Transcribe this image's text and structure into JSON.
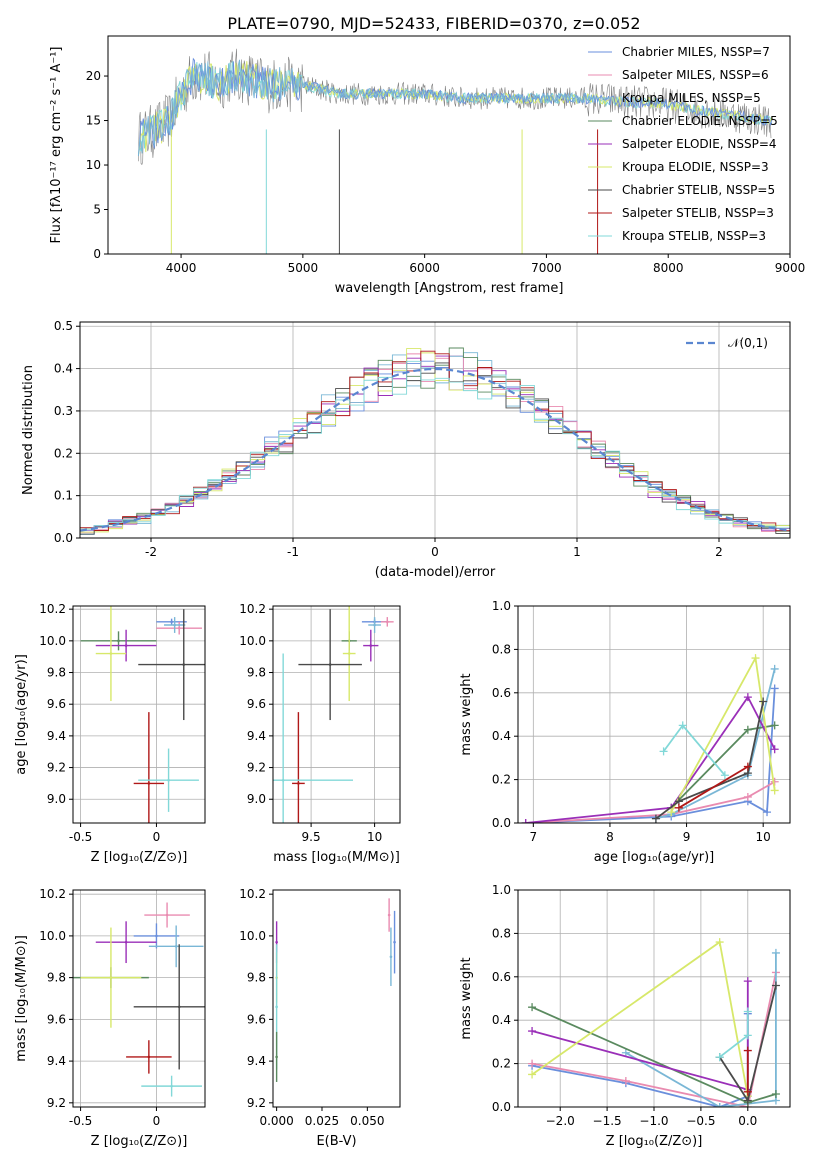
{
  "figure_title": "PLATE=0790, MJD=52433, FIBERID=0370, z=0.052",
  "colors": [
    "#6a8fdc",
    "#e98bb0",
    "#7ab7d6",
    "#5a8a5f",
    "#9a2fb8",
    "#d7e86a",
    "#4a4a4a",
    "#b01818",
    "#82d8d8"
  ],
  "chart_data": [
    {
      "type": "line",
      "title": "PLATE=0790, MJD=52433, FIBERID=0370, z=0.052",
      "xlabel": "wavelength [Angstrom, rest frame]",
      "ylabel": "Flux [fλ10⁻¹⁷ erg cm⁻² s⁻¹ A⁻¹]",
      "xlim": [
        3400,
        9000
      ],
      "ylim": [
        0,
        24.5
      ],
      "xticks": [
        4000,
        5000,
        6000,
        7000,
        8000,
        9000
      ],
      "yticks": [
        0,
        5,
        10,
        15,
        20
      ],
      "grid": false,
      "legend": "top-right",
      "legend_entries": [
        "Chabrier MILES, N_SSP=7",
        "Salpeter MILES, N_SSP=6",
        "Kroupa MILES, N_SSP=5",
        "Chabrier ELODIE, N_SSP=5",
        "Salpeter ELODIE, N_SSP=4",
        "Kroupa ELODIE, N_SSP=3",
        "Chabrier STELIB, N_SSP=5",
        "Salpeter STELIB, N_SSP=3",
        "Kroupa STELIB, N_SSP=3"
      ],
      "data_envelope": {
        "x": [
          3650,
          3800,
          3900,
          4000,
          4100,
          4200,
          4300,
          4400,
          4500,
          4700,
          5000,
          5300,
          5600,
          6000,
          6300,
          6600,
          6900,
          7100,
          7300,
          7500,
          7700,
          7900,
          8100,
          8300,
          8600,
          8800
        ],
        "y": [
          13,
          14,
          15,
          18,
          20,
          20,
          19,
          20,
          20,
          19,
          19,
          18,
          18,
          18,
          17.5,
          17.5,
          17.5,
          17.5,
          17.5,
          17.3,
          17,
          17,
          16.5,
          16,
          15.5,
          15
        ]
      }
    },
    {
      "type": "line",
      "xlabel": "(data-model)/error",
      "ylabel": "Normed distribution",
      "xlim": [
        -2.5,
        2.5
      ],
      "ylim": [
        0,
        0.51
      ],
      "xticks": [
        -2,
        -1,
        0,
        1,
        2
      ],
      "yticks": [
        0.0,
        0.1,
        0.2,
        0.3,
        0.4,
        0.5
      ],
      "grid": true,
      "legend": "top-right",
      "legend_entries": [
        "𝒩(0,1)"
      ],
      "curve": "normal(0,1)",
      "histogram_series": 9
    },
    {
      "type": "scatter",
      "xlabel": "Z [log₁₀(Z/Z⊙)]",
      "ylabel": "age  [log₁₀(age/yr)]",
      "xlim": [
        -0.55,
        0.32
      ],
      "ylim": [
        8.85,
        10.22
      ],
      "xticks": [
        -0.5,
        0.0
      ],
      "yticks": [
        9.0,
        9.2,
        9.4,
        9.6,
        9.8,
        10.0,
        10.2
      ],
      "grid": true,
      "points": [
        {
          "x": 0.1,
          "y": 10.12,
          "ex": 0.1,
          "ey": 0.02,
          "c": 0
        },
        {
          "x": 0.15,
          "y": 10.08,
          "ex": 0.15,
          "ey": 0.04,
          "c": 1
        },
        {
          "x": 0.12,
          "y": 10.1,
          "ex": 0.07,
          "ey": 0.05,
          "c": 2
        },
        {
          "x": -0.25,
          "y": 10.0,
          "ex": 0.25,
          "ey": 0.06,
          "c": 3
        },
        {
          "x": -0.2,
          "y": 9.97,
          "ex": 0.2,
          "ey": 0.1,
          "c": 4
        },
        {
          "x": -0.3,
          "y": 9.92,
          "ex": 0.1,
          "ey": 0.3,
          "c": 5
        },
        {
          "x": 0.18,
          "y": 9.85,
          "ex": 0.3,
          "ey": 0.35,
          "c": 6
        },
        {
          "x": -0.05,
          "y": 9.1,
          "ex": 0.1,
          "ey": 0.45,
          "c": 7
        },
        {
          "x": 0.08,
          "y": 9.12,
          "ex": 0.2,
          "ey": 0.2,
          "c": 8
        }
      ]
    },
    {
      "type": "scatter",
      "xlabel": "mass [log₁₀(M/M⊙)]",
      "ylabel": "",
      "xlim": [
        9.2,
        10.2
      ],
      "ylim": [
        8.85,
        10.22
      ],
      "xticks": [
        9.5,
        10.0
      ],
      "yticks": [
        9.0,
        9.2,
        9.4,
        9.6,
        9.8,
        10.0,
        10.2
      ],
      "grid": true,
      "points": [
        {
          "x": 10.0,
          "y": 10.12,
          "ex": 0.1,
          "ey": 0.02,
          "c": 0
        },
        {
          "x": 10.1,
          "y": 10.12,
          "ex": 0.05,
          "ey": 0.03,
          "c": 1
        },
        {
          "x": 10.0,
          "y": 10.1,
          "ex": 0.05,
          "ey": 0.05,
          "c": 2
        },
        {
          "x": 9.8,
          "y": 10.0,
          "ex": 0.06,
          "ey": 0.06,
          "c": 3
        },
        {
          "x": 9.97,
          "y": 9.97,
          "ex": 0.06,
          "ey": 0.1,
          "c": 4
        },
        {
          "x": 9.8,
          "y": 9.92,
          "ex": 0.05,
          "ey": 0.3,
          "c": 5
        },
        {
          "x": 9.65,
          "y": 9.85,
          "ex": 0.25,
          "ey": 0.35,
          "c": 6
        },
        {
          "x": 9.4,
          "y": 9.1,
          "ex": 0.05,
          "ey": 0.45,
          "c": 7
        },
        {
          "x": 9.28,
          "y": 9.12,
          "ex": 0.55,
          "ey": 0.8,
          "c": 8
        }
      ]
    },
    {
      "type": "line",
      "xlabel": "age  [log₁₀(age/yr)]",
      "ylabel": "mass weight",
      "xlim": [
        6.8,
        10.35
      ],
      "ylim": [
        0,
        1.0
      ],
      "xticks": [
        7,
        8,
        9,
        10
      ],
      "yticks": [
        0.0,
        0.2,
        0.4,
        0.6,
        0.8,
        1.0
      ],
      "grid": true,
      "series": [
        {
          "c": 0,
          "x": [
            6.9,
            8.8,
            9.8,
            10.05,
            10.15
          ],
          "y": [
            0.0,
            0.03,
            0.1,
            0.05,
            0.62
          ]
        },
        {
          "c": 1,
          "x": [
            6.9,
            8.8,
            9.8,
            10.15
          ],
          "y": [
            0.0,
            0.04,
            0.12,
            0.19
          ]
        },
        {
          "c": 2,
          "x": [
            8.6,
            8.8,
            9.8,
            10.15
          ],
          "y": [
            0.02,
            0.04,
            0.22,
            0.71
          ]
        },
        {
          "c": 3,
          "x": [
            8.8,
            9.8,
            10.15
          ],
          "y": [
            0.07,
            0.43,
            0.45
          ]
        },
        {
          "c": 4,
          "x": [
            6.9,
            8.8,
            9.8,
            10.15
          ],
          "y": [
            0.0,
            0.07,
            0.58,
            0.34
          ]
        },
        {
          "c": 5,
          "x": [
            8.8,
            9.9,
            10.15
          ],
          "y": [
            0.05,
            0.76,
            0.15
          ]
        },
        {
          "c": 6,
          "x": [
            8.6,
            8.9,
            9.8,
            10.0
          ],
          "y": [
            0.02,
            0.1,
            0.23,
            0.56
          ]
        },
        {
          "c": 7,
          "x": [
            8.9,
            9.8
          ],
          "y": [
            0.07,
            0.26
          ]
        },
        {
          "c": 8,
          "x": [
            8.7,
            8.95,
            9.5
          ],
          "y": [
            0.33,
            0.45,
            0.22
          ]
        }
      ]
    },
    {
      "type": "scatter",
      "xlabel": "Z [log₁₀(Z/Z⊙)]",
      "ylabel": "mass [log₁₀(M/M⊙)]",
      "xlim": [
        -0.55,
        0.32
      ],
      "ylim": [
        9.18,
        10.22
      ],
      "xticks": [
        -0.5,
        0.0
      ],
      "yticks": [
        9.2,
        9.4,
        9.6,
        9.8,
        10.0,
        10.2
      ],
      "grid": true,
      "points": [
        {
          "x": 0.0,
          "y": 10.0,
          "ex": 0.15,
          "ey": 0.06,
          "c": 0
        },
        {
          "x": 0.07,
          "y": 10.1,
          "ex": 0.15,
          "ey": 0.06,
          "c": 1
        },
        {
          "x": 0.13,
          "y": 9.95,
          "ex": 0.18,
          "ey": 0.1,
          "c": 2
        },
        {
          "x": -0.3,
          "y": 9.8,
          "ex": 0.25,
          "ey": 0.05,
          "c": 3
        },
        {
          "x": -0.2,
          "y": 9.97,
          "ex": 0.2,
          "ey": 0.1,
          "c": 4
        },
        {
          "x": -0.3,
          "y": 9.8,
          "ex": 0.2,
          "ey": 0.24,
          "c": 5
        },
        {
          "x": 0.15,
          "y": 9.66,
          "ex": 0.3,
          "ey": 0.3,
          "c": 6
        },
        {
          "x": -0.05,
          "y": 9.42,
          "ex": 0.15,
          "ey": 0.08,
          "c": 7
        },
        {
          "x": 0.1,
          "y": 9.28,
          "ex": 0.2,
          "ey": 0.05,
          "c": 8
        }
      ]
    },
    {
      "type": "scatter",
      "xlabel": "E(B-V)",
      "ylabel": "",
      "xlim": [
        -0.002,
        0.068
      ],
      "ylim": [
        9.18,
        10.22
      ],
      "xticks": [
        0.0,
        0.025,
        0.05
      ],
      "yticks": [
        9.2,
        9.4,
        9.6,
        9.8,
        10.0,
        10.2
      ],
      "tick_labels_x": [
        "0.000",
        "0.025",
        "0.050"
      ],
      "grid": false,
      "points": [
        {
          "x": 0.062,
          "y": 10.1,
          "ey": 0.08,
          "c": 1
        },
        {
          "x": 0.063,
          "y": 9.9,
          "ey": 0.14,
          "c": 2
        },
        {
          "x": 0.065,
          "y": 9.97,
          "ey": 0.15,
          "c": 0
        },
        {
          "x": 0.0,
          "y": 9.97,
          "ey": 0.1,
          "c": 4
        },
        {
          "x": 0.0,
          "y": 9.8,
          "ey": 0.12,
          "c": 5
        },
        {
          "x": 0.0,
          "y": 9.66,
          "ey": 0.3,
          "c": 8
        },
        {
          "x": 0.0,
          "y": 9.42,
          "ey": 0.12,
          "c": 3
        }
      ]
    },
    {
      "type": "line",
      "xlabel": "Z [log₁₀(Z/Z⊙)]",
      "ylabel": "mass weight",
      "xlim": [
        -2.45,
        0.45
      ],
      "ylim": [
        0,
        1.0
      ],
      "xticks": [
        -2.0,
        -1.5,
        -1.0,
        -0.5,
        0.0
      ],
      "tick_labels_x": [
        "−2.0",
        "−1.5",
        "−1.0",
        "−0.5",
        "0.0"
      ],
      "yticks": [
        0.0,
        0.2,
        0.4,
        0.6,
        0.8,
        1.0
      ],
      "grid": true,
      "series": [
        {
          "c": 0,
          "x": [
            -2.3,
            -1.3,
            -0.3,
            0.0,
            0.0
          ],
          "y": [
            0.19,
            0.11,
            0.0,
            0.05,
            0.43
          ]
        },
        {
          "c": 1,
          "x": [
            -2.3,
            -1.3,
            0.0,
            0.3
          ],
          "y": [
            0.2,
            0.12,
            0.0,
            0.62
          ]
        },
        {
          "c": 2,
          "x": [
            -1.3,
            -0.3,
            0.3,
            0.3
          ],
          "y": [
            0.25,
            0.0,
            0.03,
            0.71
          ]
        },
        {
          "c": 3,
          "x": [
            -2.3,
            0.0,
            0.3
          ],
          "y": [
            0.46,
            0.02,
            0.06
          ]
        },
        {
          "c": 4,
          "x": [
            -2.3,
            0.0,
            0.0
          ],
          "y": [
            0.35,
            0.08,
            0.58
          ]
        },
        {
          "c": 5,
          "x": [
            -2.3,
            -0.3,
            0.0
          ],
          "y": [
            0.15,
            0.76,
            0.05
          ]
        },
        {
          "c": 6,
          "x": [
            -0.3,
            0.0,
            0.3
          ],
          "y": [
            0.23,
            0.03,
            0.56
          ]
        },
        {
          "c": 7,
          "x": [
            0.0,
            0.0
          ],
          "y": [
            0.07,
            0.26
          ]
        },
        {
          "c": 8,
          "x": [
            -0.3,
            0.0,
            0.0
          ],
          "y": [
            0.23,
            0.33,
            0.44
          ]
        }
      ]
    }
  ]
}
